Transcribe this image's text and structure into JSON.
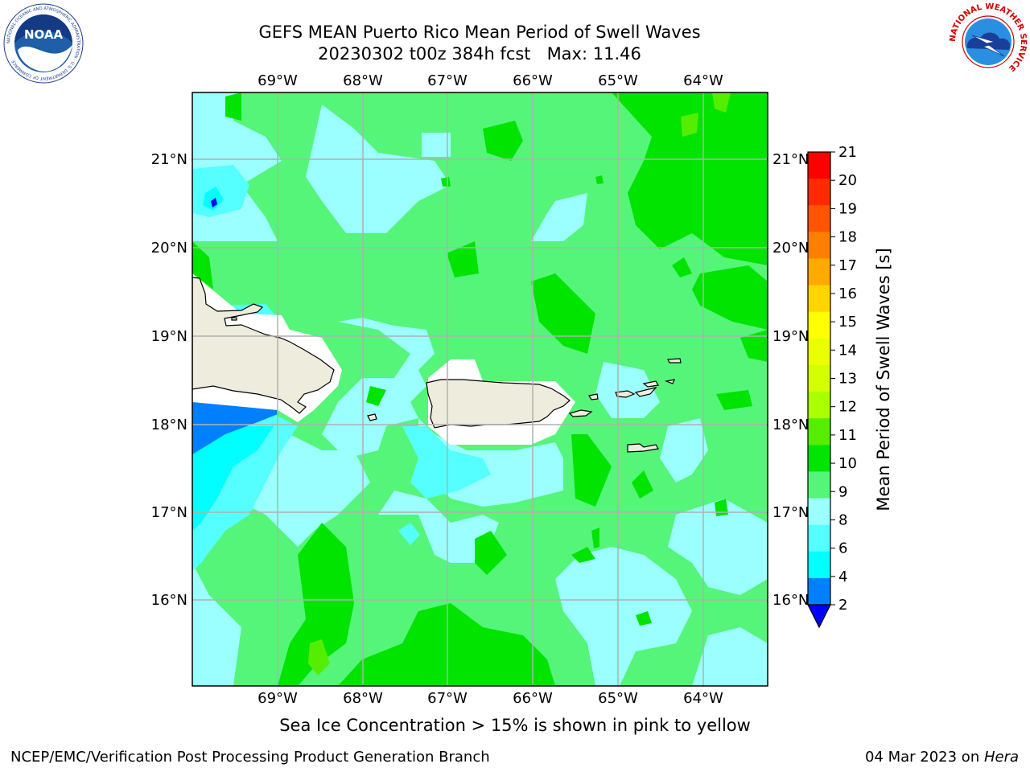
{
  "header": {
    "title_line1": "GEFS MEAN Puerto Rico Mean Period of Swell Waves",
    "title_line2": "20230302 t00z 384h fcst   Max: 11.46"
  },
  "logos": {
    "left": "noaa-logo",
    "right": "national-weather-service-logo",
    "noaa_text": "NOAA",
    "noaa_ring_text": "NATIONAL OCEANIC AND ATMOSPHERIC ADMINISTRATION · U.S. DEPARTMENT OF COMMERCE",
    "nws_ring_text": "NATIONAL WEATHER SERVICE"
  },
  "map": {
    "lon_labels": [
      "69°W",
      "68°W",
      "67°W",
      "66°W",
      "65°W",
      "64°W"
    ],
    "lat_labels": [
      "21°N",
      "20°N",
      "19°N",
      "18°N",
      "17°N",
      "16°N"
    ],
    "land_color": "#eeecdc",
    "grid_color": "#b0b0b0"
  },
  "colorbar": {
    "label": "Mean Period of Swell Waves [s]",
    "ticks": [
      "21",
      "20",
      "19",
      "18",
      "17",
      "16",
      "15",
      "14",
      "13",
      "12",
      "11",
      "10",
      "9",
      "8",
      "6",
      "4",
      "2"
    ],
    "colors": [
      "#ff0000",
      "#ff2a00",
      "#ff5500",
      "#ff8000",
      "#ffaa00",
      "#ffd400",
      "#ffff00",
      "#eaff00",
      "#d4ff00",
      "#aaff00",
      "#55ee00",
      "#00e400",
      "#55f57a",
      "#9cffff",
      "#55ffff",
      "#00ffff",
      "#0080ff"
    ],
    "under_color": "#0000ff"
  },
  "subtitle": "Sea Ice Concentration > 15% is shown in pink to yellow",
  "footer": {
    "left": "NCEP/EMC/Verification Post Processing Product Generation Branch",
    "right_prefix": "04 Mar 2023 on ",
    "right_machine": "Hera"
  }
}
